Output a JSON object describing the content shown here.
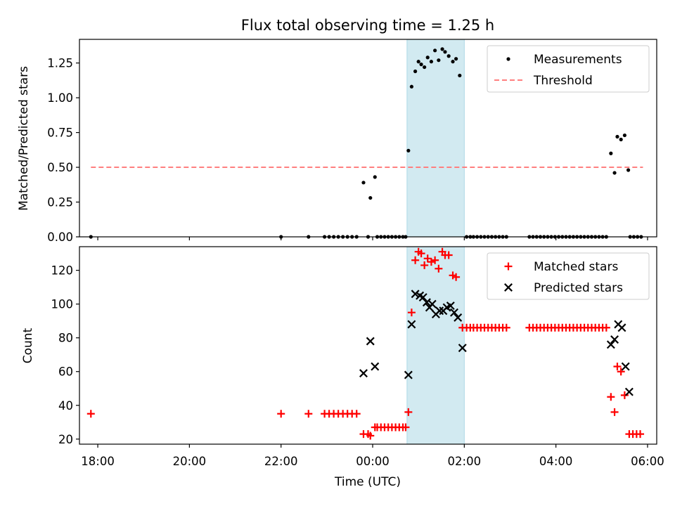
{
  "chart_data": [
    {
      "type": "scatter",
      "title": "Flux total observing time = 1.25 h",
      "xlabel": "",
      "ylabel": "Matched/Predicted stars",
      "xlim": [
        -6.4,
        6.2
      ],
      "ylim": [
        0,
        1.42
      ],
      "yticks": [
        0.0,
        0.25,
        0.5,
        0.75,
        1.0,
        1.25
      ],
      "ytick_labels": [
        "0.00",
        "0.25",
        "0.50",
        "0.75",
        "1.00",
        "1.25"
      ],
      "highlight_span": [
        0.75,
        2.0
      ],
      "highlight_color": "#add8e6",
      "legend_position": "top-right",
      "legend": [
        {
          "label": "Measurements",
          "marker": "dot",
          "color": "#000000"
        },
        {
          "label": "Threshold",
          "marker": "dashed-line",
          "color": "#ff7f7f"
        }
      ],
      "series": [
        {
          "name": "Measurements",
          "marker": "dot",
          "color": "#000000",
          "points": [
            [
              -6.15,
              0.0
            ],
            [
              -2.0,
              0.0
            ],
            [
              -1.4,
              0.0
            ],
            [
              -1.05,
              0.0
            ],
            [
              -0.95,
              0.0
            ],
            [
              -0.85,
              0.0
            ],
            [
              -0.75,
              0.0
            ],
            [
              -0.65,
              0.0
            ],
            [
              -0.55,
              0.0
            ],
            [
              -0.45,
              0.0
            ],
            [
              -0.35,
              0.0
            ],
            [
              -0.2,
              0.39
            ],
            [
              -0.1,
              0.0
            ],
            [
              -0.05,
              0.28
            ],
            [
              0.05,
              0.43
            ],
            [
              0.1,
              0.0
            ],
            [
              0.18,
              0.0
            ],
            [
              0.26,
              0.0
            ],
            [
              0.34,
              0.0
            ],
            [
              0.42,
              0.0
            ],
            [
              0.5,
              0.0
            ],
            [
              0.58,
              0.0
            ],
            [
              0.66,
              0.0
            ],
            [
              0.72,
              0.0
            ],
            [
              0.78,
              0.62
            ],
            [
              0.85,
              1.08
            ],
            [
              0.93,
              1.19
            ],
            [
              1.0,
              1.26
            ],
            [
              1.06,
              1.24
            ],
            [
              1.13,
              1.22
            ],
            [
              1.2,
              1.29
            ],
            [
              1.28,
              1.26
            ],
            [
              1.36,
              1.34
            ],
            [
              1.44,
              1.27
            ],
            [
              1.52,
              1.35
            ],
            [
              1.58,
              1.33
            ],
            [
              1.66,
              1.3
            ],
            [
              1.75,
              1.26
            ],
            [
              1.82,
              1.28
            ],
            [
              1.9,
              1.16
            ],
            [
              2.05,
              0.0
            ],
            [
              2.13,
              0.0
            ],
            [
              2.2,
              0.0
            ],
            [
              2.28,
              0.0
            ],
            [
              2.36,
              0.0
            ],
            [
              2.44,
              0.0
            ],
            [
              2.52,
              0.0
            ],
            [
              2.6,
              0.0
            ],
            [
              2.68,
              0.0
            ],
            [
              2.76,
              0.0
            ],
            [
              2.84,
              0.0
            ],
            [
              2.92,
              0.0
            ],
            [
              3.42,
              0.0
            ],
            [
              3.5,
              0.0
            ],
            [
              3.58,
              0.0
            ],
            [
              3.66,
              0.0
            ],
            [
              3.74,
              0.0
            ],
            [
              3.82,
              0.0
            ],
            [
              3.9,
              0.0
            ],
            [
              3.98,
              0.0
            ],
            [
              4.06,
              0.0
            ],
            [
              4.14,
              0.0
            ],
            [
              4.22,
              0.0
            ],
            [
              4.3,
              0.0
            ],
            [
              4.38,
              0.0
            ],
            [
              4.46,
              0.0
            ],
            [
              4.54,
              0.0
            ],
            [
              4.62,
              0.0
            ],
            [
              4.7,
              0.0
            ],
            [
              4.78,
              0.0
            ],
            [
              4.86,
              0.0
            ],
            [
              4.94,
              0.0
            ],
            [
              5.02,
              0.0
            ],
            [
              5.1,
              0.0
            ],
            [
              5.2,
              0.6
            ],
            [
              5.28,
              0.46
            ],
            [
              5.34,
              0.72
            ],
            [
              5.42,
              0.7
            ],
            [
              5.5,
              0.73
            ],
            [
              5.58,
              0.48
            ],
            [
              5.62,
              0.0
            ],
            [
              5.7,
              0.0
            ],
            [
              5.78,
              0.0
            ],
            [
              5.86,
              0.0
            ]
          ]
        },
        {
          "name": "Threshold",
          "marker": "dashed-line",
          "color": "#ff7f7f",
          "x": [
            -6.15,
            5.9
          ],
          "y": [
            0.5,
            0.5
          ]
        }
      ]
    },
    {
      "type": "scatter",
      "title": "",
      "xlabel": "Time (UTC)",
      "ylabel": "Count",
      "xlim": [
        -6.4,
        6.2
      ],
      "ylim": [
        17,
        134
      ],
      "yticks": [
        20,
        40,
        60,
        80,
        100,
        120
      ],
      "ytick_labels": [
        "20",
        "40",
        "60",
        "80",
        "100",
        "120"
      ],
      "xticks": [
        -6,
        -4,
        -2,
        0,
        2,
        4,
        6
      ],
      "xtick_labels": [
        "18:00",
        "20:00",
        "22:00",
        "00:00",
        "02:00",
        "04:00",
        "06:00"
      ],
      "highlight_span": [
        0.75,
        2.0
      ],
      "highlight_color": "#add8e6",
      "legend_position": "top-right",
      "legend": [
        {
          "label": "Matched stars",
          "marker": "plus",
          "color": "#ff0000"
        },
        {
          "label": "Predicted stars",
          "marker": "cross",
          "color": "#000000"
        }
      ],
      "series": [
        {
          "name": "Matched stars",
          "marker": "plus",
          "color": "#ff0000",
          "points": [
            [
              -6.15,
              35
            ],
            [
              -2.0,
              35
            ],
            [
              -1.4,
              35
            ],
            [
              -1.05,
              35
            ],
            [
              -0.95,
              35
            ],
            [
              -0.85,
              35
            ],
            [
              -0.75,
              35
            ],
            [
              -0.65,
              35
            ],
            [
              -0.55,
              35
            ],
            [
              -0.45,
              35
            ],
            [
              -0.35,
              35
            ],
            [
              -0.2,
              23
            ],
            [
              -0.1,
              23
            ],
            [
              -0.05,
              22
            ],
            [
              0.05,
              27
            ],
            [
              0.1,
              27
            ],
            [
              0.18,
              27
            ],
            [
              0.26,
              27
            ],
            [
              0.34,
              27
            ],
            [
              0.42,
              27
            ],
            [
              0.5,
              27
            ],
            [
              0.58,
              27
            ],
            [
              0.66,
              27
            ],
            [
              0.72,
              27
            ],
            [
              0.78,
              36
            ],
            [
              0.85,
              95
            ],
            [
              0.93,
              126
            ],
            [
              1.0,
              131
            ],
            [
              1.06,
              130
            ],
            [
              1.13,
              123
            ],
            [
              1.2,
              127
            ],
            [
              1.28,
              125
            ],
            [
              1.36,
              126
            ],
            [
              1.44,
              121
            ],
            [
              1.52,
              131
            ],
            [
              1.58,
              129
            ],
            [
              1.66,
              129
            ],
            [
              1.75,
              117
            ],
            [
              1.82,
              116
            ],
            [
              1.96,
              86
            ],
            [
              2.05,
              86
            ],
            [
              2.13,
              86
            ],
            [
              2.2,
              86
            ],
            [
              2.28,
              86
            ],
            [
              2.36,
              86
            ],
            [
              2.44,
              86
            ],
            [
              2.52,
              86
            ],
            [
              2.6,
              86
            ],
            [
              2.68,
              86
            ],
            [
              2.76,
              86
            ],
            [
              2.84,
              86
            ],
            [
              2.92,
              86
            ],
            [
              3.42,
              86
            ],
            [
              3.5,
              86
            ],
            [
              3.58,
              86
            ],
            [
              3.66,
              86
            ],
            [
              3.74,
              86
            ],
            [
              3.82,
              86
            ],
            [
              3.9,
              86
            ],
            [
              3.98,
              86
            ],
            [
              4.06,
              86
            ],
            [
              4.14,
              86
            ],
            [
              4.22,
              86
            ],
            [
              4.3,
              86
            ],
            [
              4.38,
              86
            ],
            [
              4.46,
              86
            ],
            [
              4.54,
              86
            ],
            [
              4.62,
              86
            ],
            [
              4.7,
              86
            ],
            [
              4.78,
              86
            ],
            [
              4.86,
              86
            ],
            [
              4.94,
              86
            ],
            [
              5.02,
              86
            ],
            [
              5.1,
              86
            ],
            [
              5.2,
              45
            ],
            [
              5.28,
              36
            ],
            [
              5.34,
              63
            ],
            [
              5.42,
              60
            ],
            [
              5.5,
              46
            ],
            [
              5.6,
              23
            ],
            [
              5.68,
              23
            ],
            [
              5.76,
              23
            ],
            [
              5.84,
              23
            ]
          ]
        },
        {
          "name": "Predicted stars",
          "marker": "cross",
          "color": "#000000",
          "points": [
            [
              -0.2,
              59
            ],
            [
              -0.05,
              78
            ],
            [
              0.05,
              63
            ],
            [
              0.78,
              58
            ],
            [
              0.85,
              88
            ],
            [
              0.93,
              106
            ],
            [
              1.03,
              105
            ],
            [
              1.1,
              104
            ],
            [
              1.18,
              101
            ],
            [
              1.24,
              98
            ],
            [
              1.3,
              100
            ],
            [
              1.38,
              94
            ],
            [
              1.46,
              96
            ],
            [
              1.54,
              96
            ],
            [
              1.62,
              98
            ],
            [
              1.7,
              99
            ],
            [
              1.78,
              95
            ],
            [
              1.86,
              92
            ],
            [
              1.96,
              74
            ],
            [
              5.2,
              76
            ],
            [
              5.28,
              79
            ],
            [
              5.36,
              88
            ],
            [
              5.44,
              86
            ],
            [
              5.52,
              63
            ],
            [
              5.6,
              48
            ]
          ]
        }
      ]
    }
  ]
}
